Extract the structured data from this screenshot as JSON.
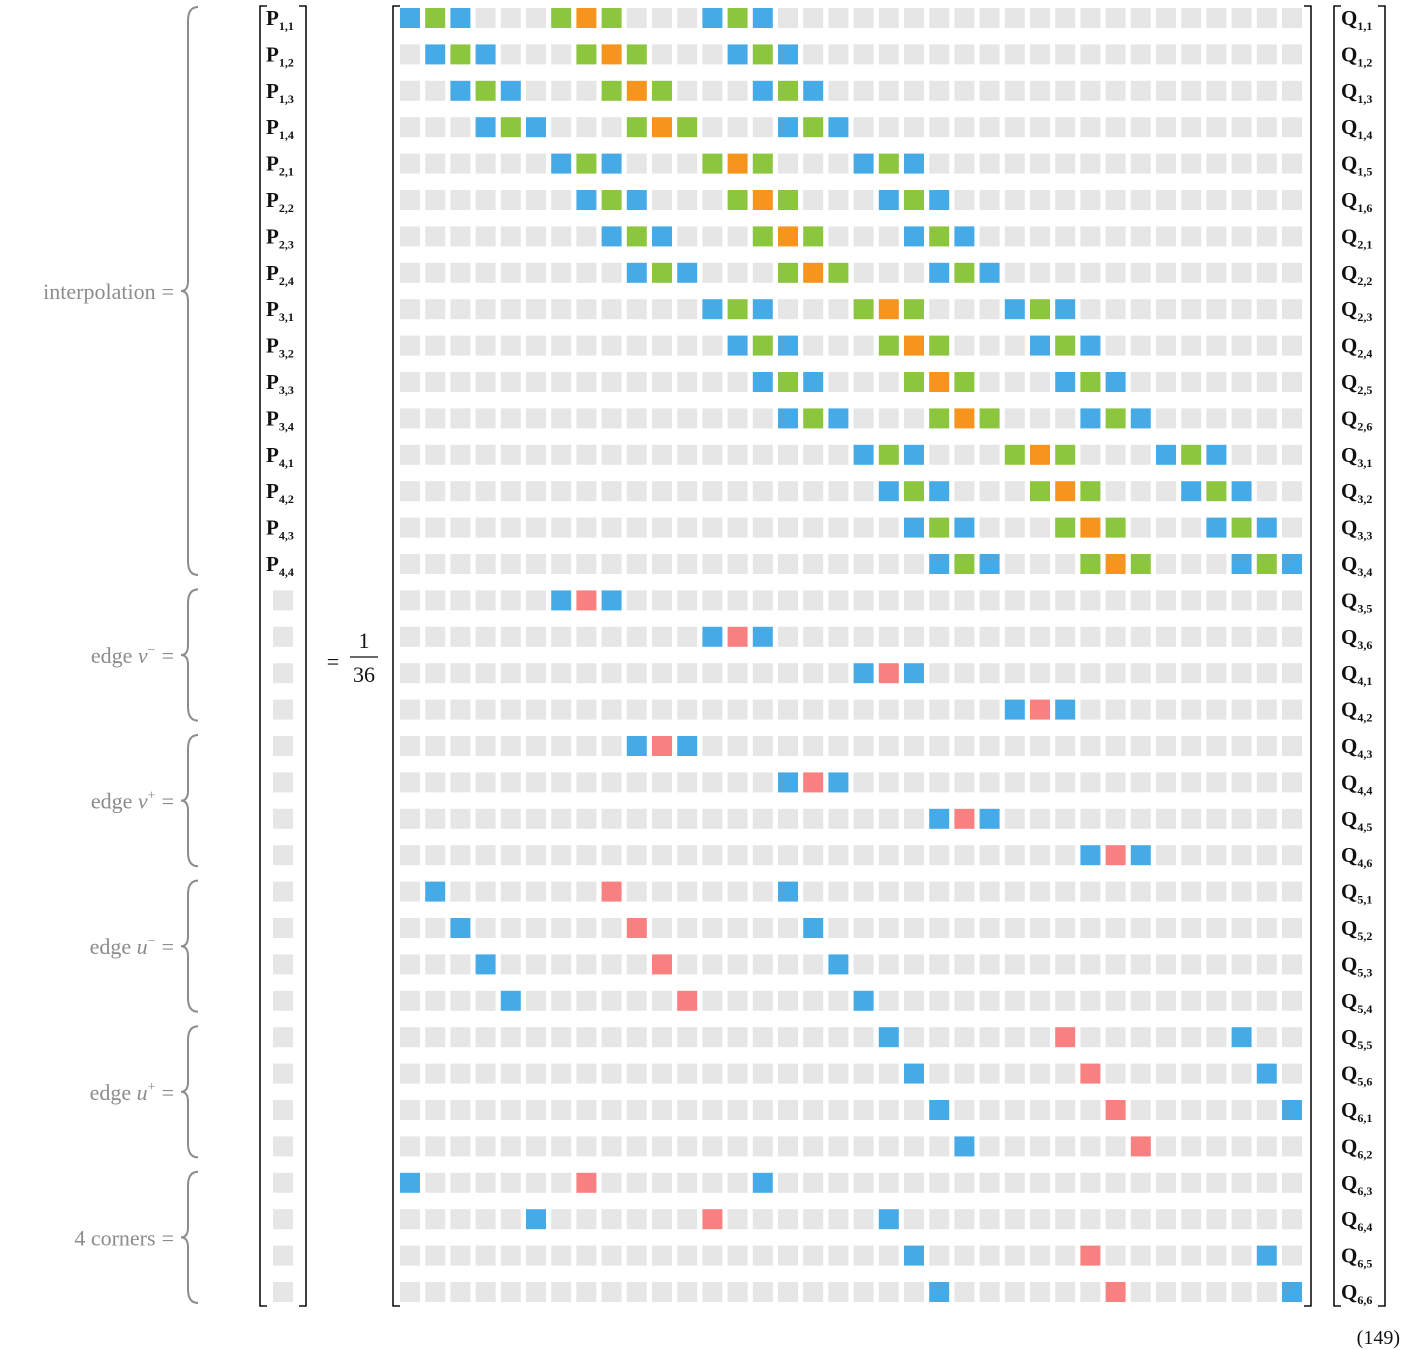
{
  "groups": [
    {
      "prefix": "interpolation",
      "var": "",
      "sup": "",
      "suffix": "="
    },
    {
      "prefix": "edge ",
      "var": "v",
      "sup": "−",
      "suffix": "="
    },
    {
      "prefix": "edge ",
      "var": "v",
      "sup": "+",
      "suffix": "="
    },
    {
      "prefix": "edge ",
      "var": "u",
      "sup": "−",
      "suffix": "="
    },
    {
      "prefix": "edge ",
      "var": "u",
      "sup": "+",
      "suffix": "="
    },
    {
      "prefix": "4 corners",
      "var": "",
      "sup": "",
      "suffix": "="
    }
  ],
  "lhs_symbol": "P",
  "lhs_labels": [
    "1,1",
    "1,2",
    "1,3",
    "1,4",
    "2,1",
    "2,2",
    "2,3",
    "2,4",
    "3,1",
    "3,2",
    "3,3",
    "3,4",
    "4,1",
    "4,2",
    "4,3",
    "4,4"
  ],
  "equals_sign": "=",
  "fraction": {
    "numerator": "1",
    "denominator": "36"
  },
  "rhs_symbol": "Q",
  "rhs_labels": [
    "1,1",
    "1,2",
    "1,3",
    "1,4",
    "1,5",
    "1,6",
    "2,1",
    "2,2",
    "2,3",
    "2,4",
    "2,5",
    "2,6",
    "3,1",
    "3,2",
    "3,3",
    "3,4",
    "3,5",
    "3,6",
    "4,1",
    "4,2",
    "4,3",
    "4,4",
    "4,5",
    "4,6",
    "5,1",
    "5,2",
    "5,3",
    "5,4",
    "5,5",
    "5,6",
    "6,1",
    "6,2",
    "6,3",
    "6,4",
    "6,5",
    "6,6"
  ],
  "equation_number": "(149)",
  "colors": {
    "empty": "#e6e6e6",
    "blue": "#45aae6",
    "green": "#8cc63f",
    "orange": "#f7941d",
    "red": "#f98080",
    "label": "#8c8c8c"
  },
  "matrix_rows": [
    "BGB...GOG...BGB.....................",
    ".BGB...GOG...BGB....................",
    "..BGB...GOG...BGB...................",
    "...BGB...GOG...BGB..................",
    "......BGB...GOG...BGB...............",
    ".......BGB...GOG...BGB..............",
    "........BGB...GOG...BGB.............",
    ".........BGB...GOG...BGB............",
    "............BGB...GOG...BGB.........",
    ".............BGB...GOG...BGB........",
    "..............BGB...GOG...BGB.......",
    "...............BGB...GOG...BGB......",
    "..................BGB...GOG...BGB...",
    "...................BGB...GOG...BGB..",
    "....................BGB...GOG...BGB.",
    ".....................BGB...GOG...BGB",
    "......BRB...........................",
    "............BRB.....................",
    "..................BRB...............",
    "........................BRB.........",
    ".........BRB........................",
    "...............BRB..................",
    ".....................BRB............",
    "...........................BRB......",
    ".B......R......B....................",
    "..B......R......B...................",
    "...B......R......B..................",
    "....B......R......B.................",
    "...................B......R......B..",
    "....................B......R......B.",
    ".....................B......R......B",
    "......................B......R......",
    "B......R......B.....................",
    ".....B......R......B................",
    "....................B......R......B.",
    ".....................B......R......B"
  ]
}
